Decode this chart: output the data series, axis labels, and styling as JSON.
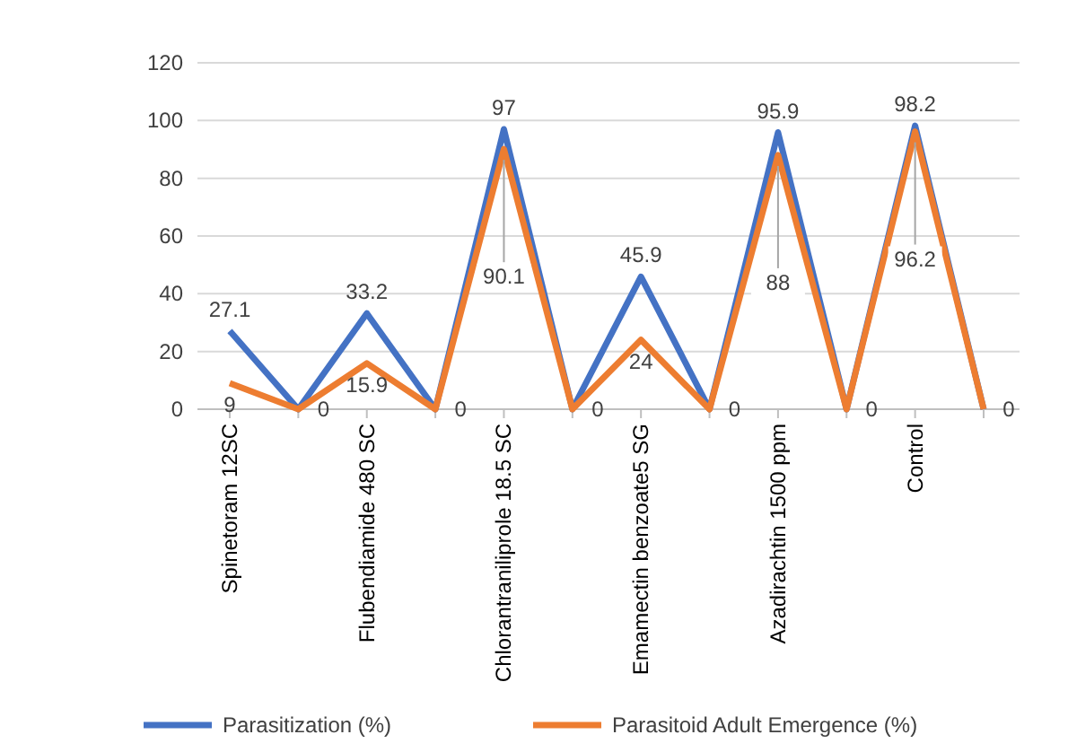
{
  "chart_data": {
    "type": "line",
    "categories": [
      "Spinetoram   12SC",
      null,
      "Flubendiamide 480 SC",
      null,
      "Chlorantraniliprole 18.5 SC",
      null,
      "Emamectin benzoate5 SG",
      null,
      "Azadirachtin  1500  ppm",
      null,
      "Control",
      null
    ],
    "series": [
      {
        "name": "Parasitization (%)",
        "color": "#4472c4",
        "values": [
          27.1,
          0,
          33.2,
          0,
          97,
          0,
          45.9,
          0,
          95.9,
          0,
          98.2,
          0
        ],
        "value_labels": [
          "27.1",
          "0",
          "33.2",
          "0",
          "97",
          "0",
          "45.9",
          "0",
          "95.9",
          "0",
          "98.2",
          "0"
        ]
      },
      {
        "name": "Parasitoid Adult Emergence (%)",
        "color": "#ed7d31",
        "values": [
          9,
          0,
          15.9,
          0,
          90.1,
          0,
          24,
          0,
          88,
          0,
          96.2,
          0
        ],
        "value_labels": [
          "9",
          null,
          "15.9",
          null,
          "90.1",
          null,
          "24",
          null,
          "88",
          null,
          "96.2",
          null
        ]
      }
    ],
    "ylim": [
      0,
      120
    ],
    "yticks": [
      0,
      20,
      40,
      60,
      80,
      100,
      120
    ],
    "grid": "y",
    "legend": "bottom",
    "marker": "none",
    "line_style": "solid"
  }
}
